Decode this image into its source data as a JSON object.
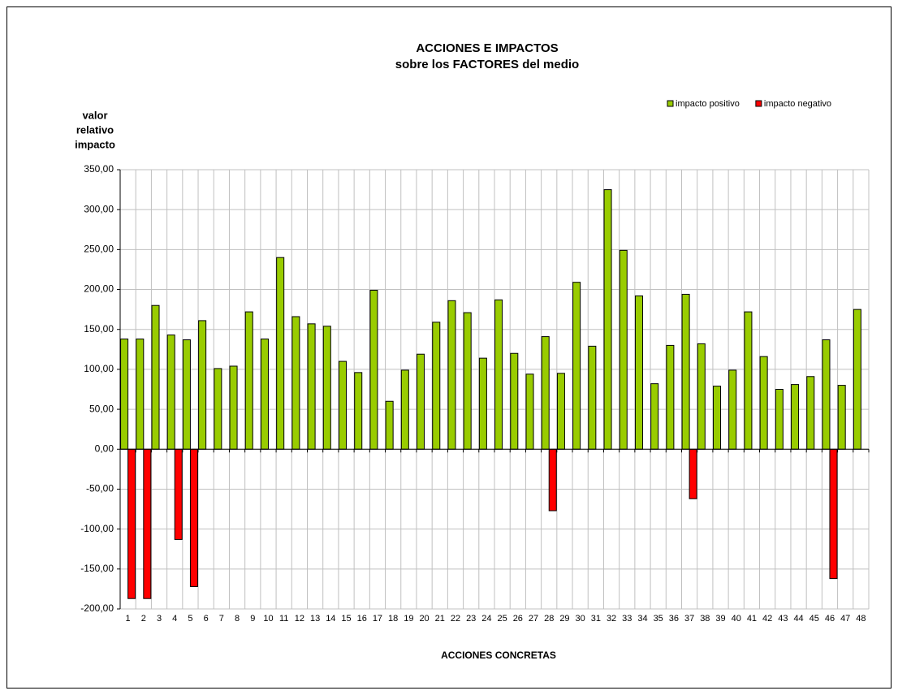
{
  "chart_data": {
    "type": "bar",
    "title": "ACCIONES E IMPACTOS",
    "subtitle": "sobre los FACTORES del medio",
    "ylabel": [
      "valor",
      "relativo",
      "impacto"
    ],
    "xlabel": "ACCIONES CONCRETAS",
    "categories": [
      "1",
      "2",
      "3",
      "4",
      "5",
      "6",
      "7",
      "8",
      "9",
      "10",
      "11",
      "12",
      "13",
      "14",
      "15",
      "16",
      "17",
      "18",
      "19",
      "20",
      "21",
      "22",
      "23",
      "24",
      "25",
      "26",
      "27",
      "28",
      "29",
      "30",
      "31",
      "32",
      "33",
      "34",
      "35",
      "36",
      "37",
      "38",
      "39",
      "40",
      "41",
      "42",
      "43",
      "44",
      "45",
      "46",
      "47",
      "48"
    ],
    "series": [
      {
        "name": "impacto positivo",
        "color": "#99cc00",
        "values": [
          138,
          138,
          180,
          143,
          137,
          161,
          101,
          104,
          172,
          138,
          240,
          166,
          157,
          154,
          110,
          96,
          199,
          60,
          99,
          119,
          159,
          186,
          171,
          114,
          187,
          120,
          94,
          141,
          95,
          209,
          129,
          325,
          249,
          192,
          82,
          130,
          194,
          132,
          79,
          99,
          172,
          116,
          75,
          81,
          91,
          137,
          80,
          175
        ]
      },
      {
        "name": "impacto negativo",
        "color": "#ff0000",
        "values": [
          -187,
          -187,
          0,
          -113,
          -172,
          0,
          0,
          0,
          0,
          0,
          0,
          0,
          0,
          0,
          0,
          0,
          0,
          0,
          0,
          0,
          0,
          0,
          0,
          0,
          0,
          0,
          0,
          -77,
          0,
          0,
          0,
          0,
          0,
          0,
          0,
          0,
          -62,
          0,
          0,
          0,
          0,
          0,
          0,
          0,
          0,
          -162,
          0,
          0
        ]
      }
    ],
    "ylim": [
      -200,
      350
    ],
    "yticks": [
      {
        "value": -200,
        "label": "-200,00"
      },
      {
        "value": -150,
        "label": "-150,00"
      },
      {
        "value": -100,
        "label": "-100,00"
      },
      {
        "value": -50,
        "label": "-50,00"
      },
      {
        "value": 0,
        "label": "0,00"
      },
      {
        "value": 50,
        "label": "50,00"
      },
      {
        "value": 100,
        "label": "100,00"
      },
      {
        "value": 150,
        "label": "150,00"
      },
      {
        "value": 200,
        "label": "200,00"
      },
      {
        "value": 250,
        "label": "250,00"
      },
      {
        "value": 300,
        "label": "300,00"
      },
      {
        "value": 350,
        "label": "350,00"
      }
    ],
    "grid": true,
    "legend": "top-right"
  }
}
